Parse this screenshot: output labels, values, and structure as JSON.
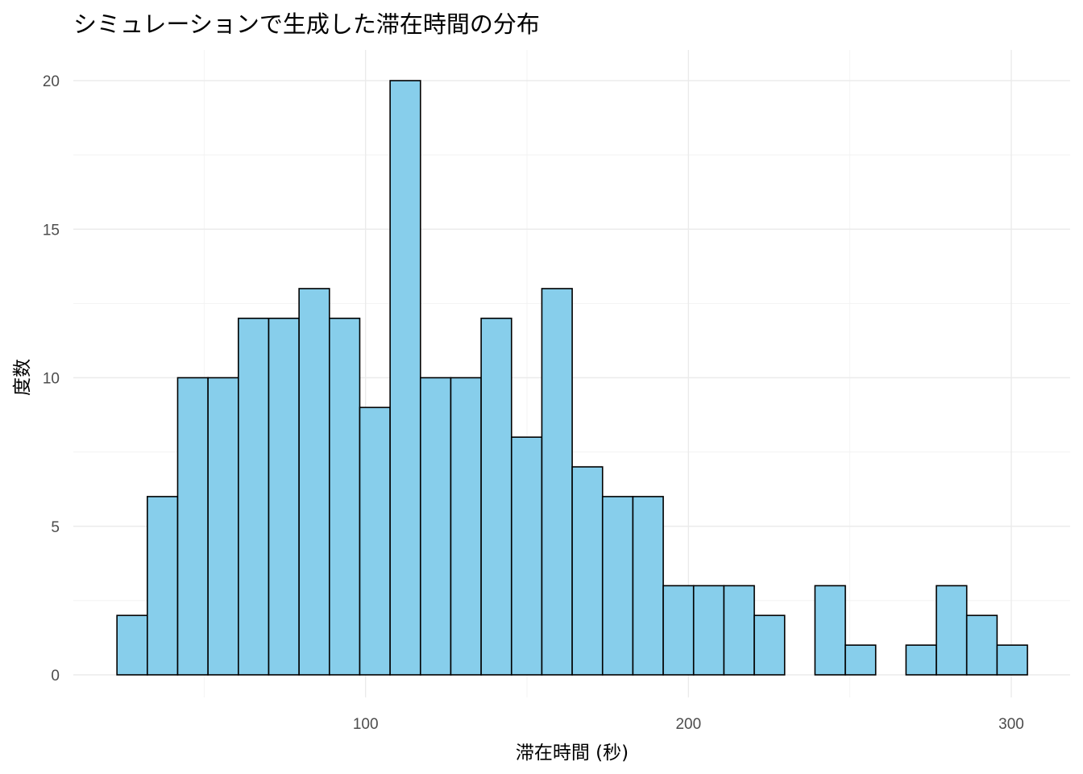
{
  "chart_data": {
    "type": "bar",
    "title": "シミュレーションで生成した滞在時間の分布",
    "xlabel": "滞在時間 (秒)",
    "ylabel": "度数",
    "bin_width": 9.4,
    "bins_start": [
      23,
      32.4,
      41.8,
      51.2,
      60.6,
      70,
      79.4,
      88.8,
      98.2,
      107.6,
      117,
      126.4,
      135.8,
      145.2,
      154.6,
      164,
      173.4,
      182.8,
      192.2,
      201.6,
      211,
      220.4,
      229.8,
      239.2,
      248.6,
      258,
      267.4,
      276.8,
      286.2,
      295.6
    ],
    "values": [
      2,
      6,
      10,
      10,
      12,
      12,
      13,
      12,
      9,
      20,
      10,
      10,
      12,
      8,
      13,
      7,
      6,
      6,
      3,
      3,
      3,
      2,
      0,
      3,
      1,
      0,
      1,
      3,
      2,
      1
    ],
    "xlim": [
      0,
      310
    ],
    "ylim": [
      0,
      20
    ],
    "x_ticks": [
      100,
      200,
      300
    ],
    "x_minor_ticks": [
      50,
      150,
      250
    ],
    "y_ticks": [
      0,
      5,
      10,
      15,
      20
    ],
    "y_minor_ticks": [
      2.5,
      7.5,
      12.5,
      17.5
    ],
    "grid": true,
    "legend": "none",
    "colors": {
      "fill": "#87ceeb",
      "outline": "#000000",
      "grid": "#ebebeb"
    }
  }
}
